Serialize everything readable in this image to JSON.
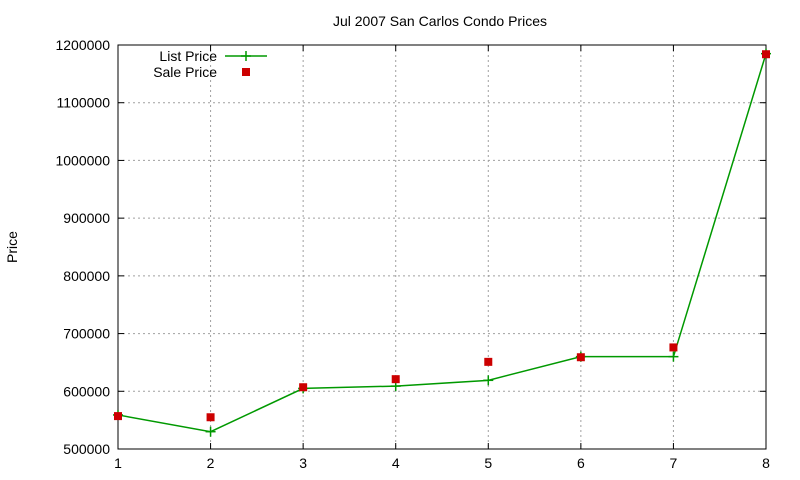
{
  "chart_data": {
    "type": "line",
    "title": "Jul 2007 San Carlos Condo Prices",
    "xlabel": "",
    "ylabel": "Price",
    "x": [
      1,
      2,
      3,
      4,
      5,
      6,
      7,
      8
    ],
    "xlim": [
      1,
      8
    ],
    "ylim": [
      500000,
      1200000
    ],
    "xticks": [
      1,
      2,
      3,
      4,
      5,
      6,
      7,
      8
    ],
    "yticks": [
      500000,
      600000,
      700000,
      800000,
      900000,
      1000000,
      1100000,
      1200000
    ],
    "grid": true,
    "legend_position": "top-left",
    "series": [
      {
        "name": "List Price",
        "style": "line-with-plus",
        "color": "#009900",
        "values": [
          559000,
          530000,
          605000,
          609000,
          619000,
          660000,
          660000,
          1185000
        ]
      },
      {
        "name": "Sale Price",
        "style": "square-markers",
        "color": "#cc0000",
        "values": [
          557000,
          555000,
          607000,
          621000,
          651000,
          659000,
          676000,
          1184000
        ]
      }
    ]
  }
}
